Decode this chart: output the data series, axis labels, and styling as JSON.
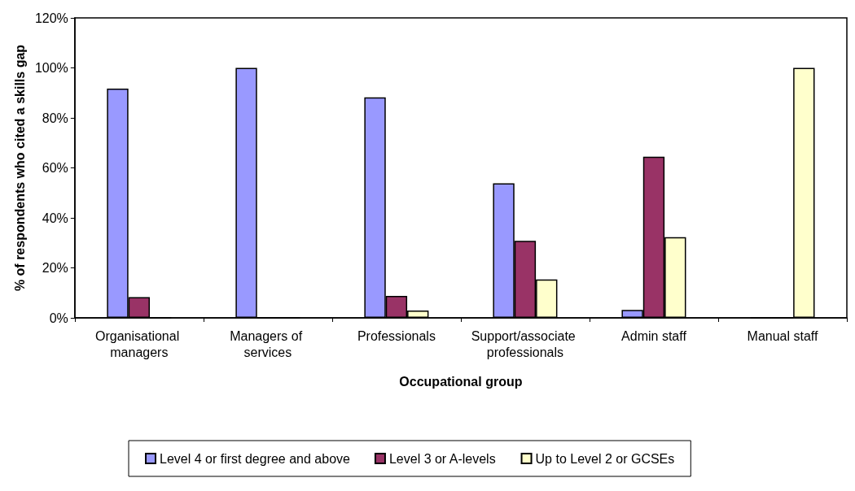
{
  "chart_data": {
    "type": "bar",
    "xlabel": "Occupational group",
    "ylabel": "% of respondents who cited a skills gap",
    "categories": [
      "Organisational managers",
      "Managers of services",
      "Professionals",
      "Support/associate professionals",
      "Admin staff",
      "Manual staff"
    ],
    "series": [
      {
        "name": "Level 4 or first degree and above",
        "color": "#9999ff",
        "values": [
          91.7,
          100,
          88.2,
          53.8,
          3.2,
          0
        ]
      },
      {
        "name": "Level 3 or A-levels",
        "color": "#993366",
        "values": [
          8.3,
          0,
          8.8,
          30.8,
          64.5,
          0
        ]
      },
      {
        "name": "Up to Level 2 or GCSEs",
        "color": "#ffffcc",
        "values": [
          0,
          0,
          2.9,
          15.4,
          32.3,
          100
        ]
      }
    ],
    "ylim": [
      0,
      120
    ],
    "yticks": [
      {
        "value": 0,
        "label": "0%"
      },
      {
        "value": 20,
        "label": "20%"
      },
      {
        "value": 40,
        "label": "40%"
      },
      {
        "value": 60,
        "label": "60%"
      },
      {
        "value": 80,
        "label": "80%"
      },
      {
        "value": 100,
        "label": "100%"
      },
      {
        "value": 120,
        "label": "120%"
      }
    ],
    "grid": false,
    "legend": "bottom"
  }
}
